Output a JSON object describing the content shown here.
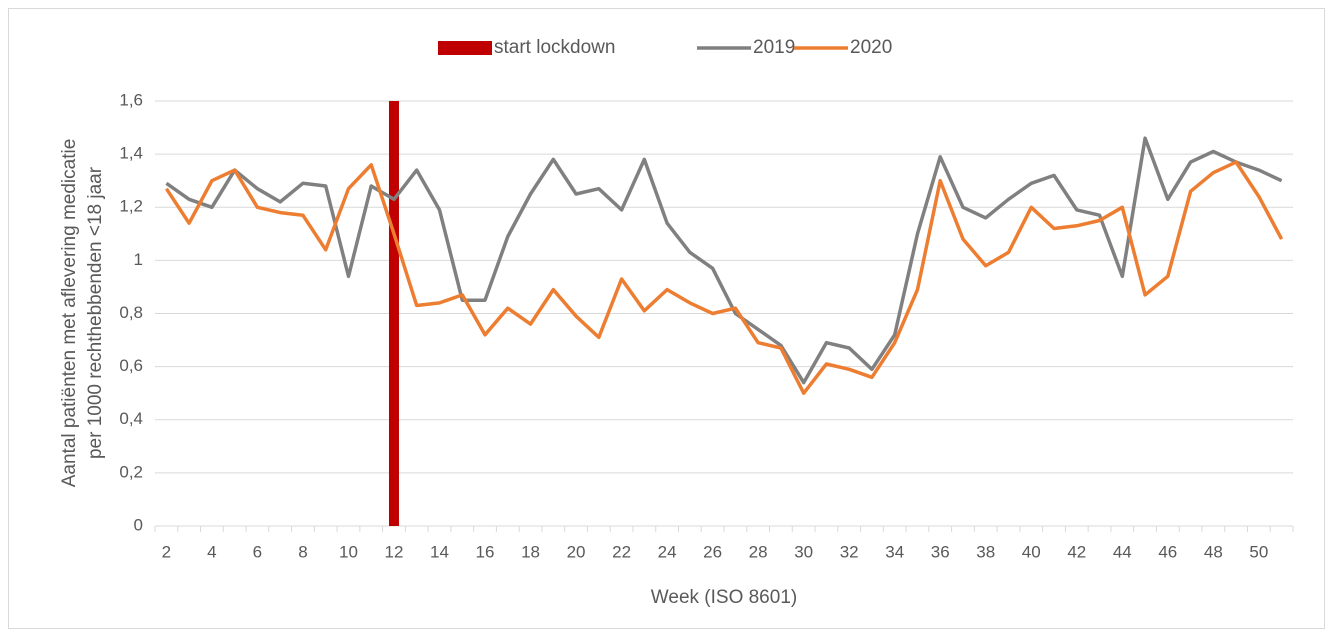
{
  "chart_data": {
    "type": "line",
    "xlabel": "Week (ISO 8601)",
    "ylabel": [
      "Aantal patiënten met aflevering medicatie",
      "per 1000 rechthebbenden <18 jaar"
    ],
    "categories": [
      "2",
      null,
      "4",
      null,
      "6",
      null,
      "8",
      null,
      "10",
      null,
      "12",
      null,
      "14",
      null,
      "16",
      null,
      "18",
      null,
      "20",
      null,
      "22",
      null,
      "24",
      null,
      "26",
      null,
      "28",
      null,
      "30",
      null,
      "32",
      null,
      "34",
      null,
      "36",
      null,
      "38",
      null,
      "40",
      null,
      "42",
      null,
      "44",
      null,
      "46",
      null,
      "48",
      null,
      "50",
      null
    ],
    "series": [
      {
        "name": "start lockdown",
        "type": "bar",
        "color": "#c00000",
        "values": [
          null,
          null,
          null,
          null,
          null,
          null,
          null,
          null,
          null,
          null,
          1.6,
          null,
          null,
          null,
          null,
          null,
          null,
          null,
          null,
          null,
          null,
          null,
          null,
          null,
          null,
          null,
          null,
          null,
          null,
          null,
          null,
          null,
          null,
          null,
          null,
          null,
          null,
          null,
          null,
          null,
          null,
          null,
          null,
          null,
          null,
          null,
          null,
          null,
          null,
          null
        ]
      },
      {
        "name": "2019",
        "type": "line",
        "color": "#808080",
        "values": [
          1.29,
          1.23,
          1.2,
          1.34,
          1.27,
          1.22,
          1.29,
          1.28,
          0.94,
          1.28,
          1.23,
          1.34,
          1.19,
          0.85,
          0.85,
          1.09,
          1.25,
          1.38,
          1.25,
          1.27,
          1.19,
          1.38,
          1.14,
          1.03,
          0.97,
          0.8,
          0.74,
          0.68,
          0.54,
          0.69,
          0.67,
          0.59,
          0.72,
          1.1,
          1.39,
          1.2,
          1.16,
          1.23,
          1.29,
          1.32,
          1.19,
          1.17,
          0.94,
          1.46,
          1.23,
          1.37,
          1.41,
          1.37,
          1.34,
          1.3
        ]
      },
      {
        "name": "2020",
        "type": "line",
        "color": "#ed7d31",
        "values": [
          1.27,
          1.14,
          1.3,
          1.34,
          1.2,
          1.18,
          1.17,
          1.04,
          1.27,
          1.36,
          1.1,
          0.83,
          0.84,
          0.87,
          0.72,
          0.82,
          0.76,
          0.89,
          0.79,
          0.71,
          0.93,
          0.81,
          0.89,
          0.84,
          0.8,
          0.82,
          0.69,
          0.67,
          0.5,
          0.61,
          0.59,
          0.56,
          0.69,
          0.89,
          1.3,
          1.08,
          0.98,
          1.03,
          1.2,
          1.12,
          1.13,
          1.15,
          1.2,
          0.87,
          0.94,
          1.26,
          1.33,
          1.37,
          1.24,
          1.08
        ]
      }
    ],
    "ylim": [
      0,
      1.6
    ],
    "yticks": [
      0,
      {
        "value": 0.2,
        "label": "0,2"
      },
      {
        "value": 0.4,
        "label": "0,4"
      },
      {
        "value": 0.6,
        "label": "0,6"
      },
      {
        "value": 0.8,
        "label": "0,8"
      },
      1,
      {
        "value": 1.2,
        "label": "1,2"
      },
      {
        "value": 1.4,
        "label": "1,4"
      },
      {
        "value": 1.6,
        "label": "1,6"
      }
    ],
    "grid": true,
    "legend": "top"
  }
}
